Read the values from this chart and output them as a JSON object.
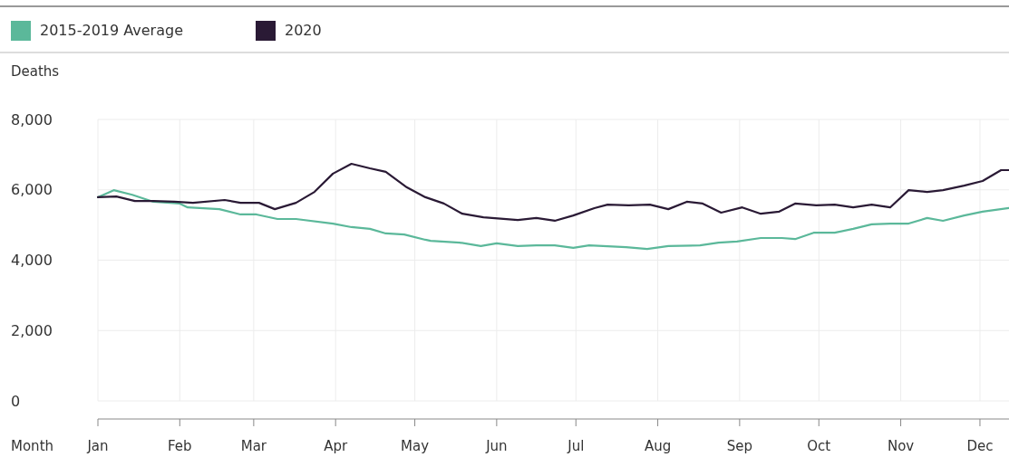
{
  "chart_data": {
    "type": "line",
    "xlabel": "Month",
    "ylabel": "Deaths",
    "legend": "top left",
    "grid": true,
    "xlim": [
      "--01-01",
      "--12-12"
    ],
    "ylim": [
      0,
      8000
    ],
    "yticks": [
      0,
      {
        "value": 2000,
        "label": "2,000"
      },
      {
        "value": 4000,
        "label": "4,000"
      },
      {
        "value": 6000,
        "label": "6,000"
      },
      {
        "value": 8000,
        "label": "8,000"
      }
    ],
    "xticks": [
      {
        "value": "--01-01",
        "label": "Jan"
      },
      {
        "value": "--02-01",
        "label": "Feb"
      },
      {
        "value": "--03-01",
        "label": "Mar"
      },
      {
        "value": "--04-01",
        "label": "Apr"
      },
      {
        "value": "--05-01",
        "label": "May"
      },
      {
        "value": "--06-01",
        "label": "Jun"
      },
      {
        "value": "--07-01",
        "label": "Jul"
      },
      {
        "value": "--08-01",
        "label": "Aug"
      },
      {
        "value": "--09-01",
        "label": "Sep"
      },
      {
        "value": "--10-01",
        "label": "Oct"
      },
      {
        "value": "--11-01",
        "label": "Nov"
      },
      {
        "value": "--12-01",
        "label": "Dec"
      }
    ],
    "series": [
      {
        "name": "2015-2019 Average",
        "color": "#5bb89a",
        "x": [
          "--01-01",
          "--01-07",
          "--01-14",
          "--01-22",
          "--02-01",
          "--02-04",
          "--02-16",
          "--02-24",
          "--03-02",
          "--03-10",
          "--03-17",
          "--03-31",
          "--04-07",
          "--04-14",
          "--04-20",
          "--04-27",
          "--05-05",
          "--05-07",
          "--05-18",
          "--05-26",
          "--06-01",
          "--06-09",
          "--06-16",
          "--06-23",
          "--06-30",
          "--07-06",
          "--07-20",
          "--07-28",
          "--08-05",
          "--08-17",
          "--08-24",
          "--08-31",
          "--09-09",
          "--09-17",
          "--09-22",
          "--09-29",
          "--10-07",
          "--10-14",
          "--10-21",
          "--10-28",
          "--11-04",
          "--11-11",
          "--11-17",
          "--11-25",
          "--12-02",
          "--12-12"
        ],
        "values": [
          5790,
          5990,
          5860,
          5660,
          5610,
          5500,
          5450,
          5300,
          5300,
          5170,
          5170,
          5040,
          4940,
          4890,
          4760,
          4730,
          4580,
          4550,
          4500,
          4400,
          4480,
          4400,
          4420,
          4420,
          4350,
          4420,
          4370,
          4320,
          4400,
          4420,
          4500,
          4530,
          4630,
          4630,
          4600,
          4780,
          4780,
          4890,
          5020,
          5040,
          5040,
          5200,
          5120,
          5270,
          5380,
          5480
        ]
      },
      {
        "name": "2020",
        "color": "#2a1a35",
        "x": [
          "--01-01",
          "--01-08",
          "--01-15",
          "--01-22",
          "--01-30",
          "--02-06",
          "--02-18",
          "--02-24",
          "--03-03",
          "--03-09",
          "--03-17",
          "--03-24",
          "--03-31",
          "--04-07",
          "--04-14",
          "--04-20",
          "--04-28",
          "--05-05",
          "--05-12",
          "--05-19",
          "--05-27",
          "--06-09",
          "--06-16",
          "--06-23",
          "--06-30",
          "--07-08",
          "--07-13",
          "--07-21",
          "--07-29",
          "--08-05",
          "--08-12",
          "--08-18",
          "--08-25",
          "--09-02",
          "--09-09",
          "--09-16",
          "--09-22",
          "--09-30",
          "--10-07",
          "--10-14",
          "--10-21",
          "--10-28",
          "--11-04",
          "--11-11",
          "--11-17",
          "--11-25",
          "--12-02",
          "--12-09",
          "--12-12"
        ],
        "values": [
          5790,
          5810,
          5680,
          5680,
          5660,
          5630,
          5710,
          5630,
          5630,
          5450,
          5630,
          5940,
          6460,
          6740,
          6610,
          6510,
          6070,
          5790,
          5610,
          5320,
          5220,
          5140,
          5200,
          5120,
          5270,
          5480,
          5580,
          5560,
          5580,
          5450,
          5660,
          5610,
          5350,
          5500,
          5320,
          5380,
          5610,
          5560,
          5580,
          5500,
          5580,
          5500,
          5990,
          5940,
          5990,
          6120,
          6250,
          6560,
          6560
        ]
      }
    ]
  }
}
